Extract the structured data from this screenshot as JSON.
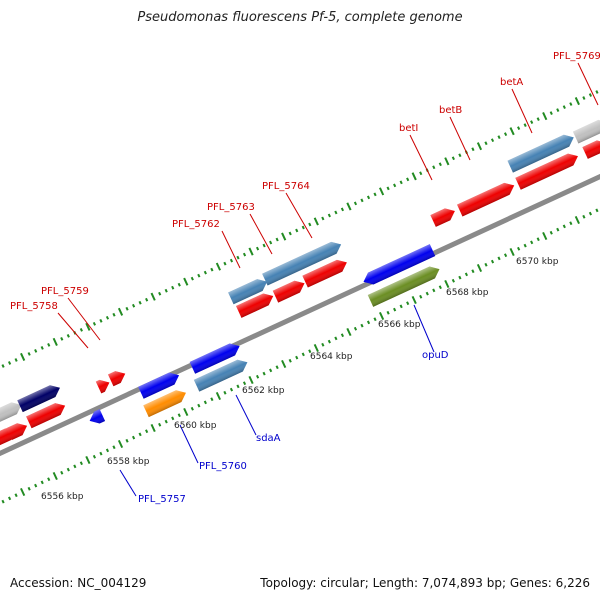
{
  "title": "Pseudomonas fluorescens Pf-5, complete genome",
  "footer": {
    "accession_label": "Accession:",
    "accession": "NC_004129",
    "topology_label": "Topology:",
    "topology": "circular",
    "length_label": "Length:",
    "length": "7,074,893 bp",
    "genes_label": "Genes:",
    "genes": "6,226"
  },
  "colors": {
    "forward_gene": "#ee0000",
    "reverse_gene": "#0000ee",
    "steelblue_gene": "#4682b4",
    "navy_gene": "#000066",
    "olive_gene": "#6b8e23",
    "orange_gene": "#ff8c00",
    "gray_gene": "#c0c0c0",
    "label_forward": "#cc0000",
    "label_reverse": "#0000cc",
    "tick": "#228b22",
    "backbone": "#808080"
  },
  "gene_labels": [
    {
      "name": "PFL_5758",
      "strand": "forward"
    },
    {
      "name": "PFL_5759",
      "strand": "forward"
    },
    {
      "name": "PFL_5762",
      "strand": "forward"
    },
    {
      "name": "PFL_5763",
      "strand": "forward"
    },
    {
      "name": "PFL_5764",
      "strand": "forward"
    },
    {
      "name": "betI",
      "strand": "forward"
    },
    {
      "name": "betB",
      "strand": "forward"
    },
    {
      "name": "betA",
      "strand": "forward"
    },
    {
      "name": "PFL_5769",
      "strand": "forward"
    },
    {
      "name": "PFL_5757",
      "strand": "reverse"
    },
    {
      "name": "PFL_5760",
      "strand": "reverse"
    },
    {
      "name": "sdaA",
      "strand": "reverse"
    },
    {
      "name": "opuD",
      "strand": "reverse"
    }
  ],
  "kbp_labels": [
    "6556 kbp",
    "6558 kbp",
    "6560 kbp",
    "6562 kbp",
    "6564 kbp",
    "6566 kbp",
    "6568 kbp",
    "6570 kbp"
  ]
}
